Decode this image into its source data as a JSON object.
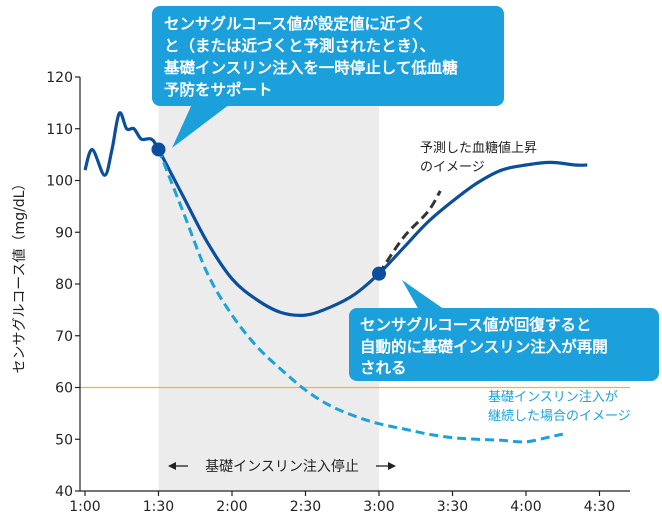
{
  "chart_data": {
    "type": "line",
    "ylabel": "センサグルコース値（mg/dL）",
    "ylim": [
      40,
      120
    ],
    "yticks": [
      40,
      50,
      60,
      70,
      80,
      90,
      100,
      110,
      120
    ],
    "xticks": [
      "1:00",
      "1:30",
      "2:00",
      "2:30",
      "3:00",
      "3:30",
      "4:00",
      "4:30"
    ],
    "grid": false,
    "threshold": {
      "value": 60,
      "color": "#f2b821"
    },
    "suspend_band": {
      "from": "1:30",
      "to": "3:00",
      "label": "基礎インスリン注入停止"
    },
    "series": [
      {
        "name": "",
        "style": "solid",
        "color": "#0b4f9c",
        "points": [
          [
            "1:00",
            102
          ],
          [
            "1:03",
            106
          ],
          [
            "1:08",
            101
          ],
          [
            "1:11",
            106
          ],
          [
            "1:14",
            113
          ],
          [
            "1:17",
            110
          ],
          [
            "1:20",
            110
          ],
          [
            "1:23",
            108
          ],
          [
            "1:27",
            108
          ],
          [
            "1:30",
            106
          ],
          [
            "1:40",
            97
          ],
          [
            "1:50",
            88
          ],
          [
            "2:00",
            81
          ],
          [
            "2:10",
            77
          ],
          [
            "2:20",
            74.5
          ],
          [
            "2:30",
            74
          ],
          [
            "2:40",
            75.5
          ],
          [
            "2:50",
            78
          ],
          [
            "3:00",
            82
          ],
          [
            "3:10",
            87
          ],
          [
            "3:20",
            92
          ],
          [
            "3:30",
            96
          ],
          [
            "3:40",
            99.5
          ],
          [
            "3:50",
            102
          ],
          [
            "4:00",
            103
          ],
          [
            "4:10",
            103.5
          ],
          [
            "4:20",
            103
          ],
          [
            "4:25",
            103
          ]
        ]
      },
      {
        "name": "予測した血糖値上昇のイメージ",
        "style": "dashed",
        "color": "#333333",
        "points": [
          [
            "3:00",
            82
          ],
          [
            "3:10",
            89
          ],
          [
            "3:20",
            94
          ],
          [
            "3:25",
            98
          ]
        ]
      },
      {
        "name": "基礎インスリン注入が継続した場合のイメージ",
        "style": "dashed",
        "color": "#1aa3d9",
        "points": [
          [
            "1:30",
            106
          ],
          [
            "1:40",
            94
          ],
          [
            "1:50",
            82
          ],
          [
            "2:00",
            74
          ],
          [
            "2:10",
            68
          ],
          [
            "2:20",
            63.5
          ],
          [
            "2:30",
            59.5
          ],
          [
            "2:40",
            56.5
          ],
          [
            "2:50",
            54.5
          ],
          [
            "3:00",
            53
          ],
          [
            "3:10",
            52
          ],
          [
            "3:20",
            51
          ],
          [
            "3:30",
            50.3
          ],
          [
            "3:40",
            50
          ],
          [
            "3:50",
            49.8
          ],
          [
            "4:00",
            49.5
          ],
          [
            "4:10",
            50.5
          ],
          [
            "4:15",
            51
          ]
        ]
      }
    ],
    "markers": [
      {
        "x": "1:30",
        "y": 106,
        "color": "#0b4f9c"
      },
      {
        "x": "3:00",
        "y": 82,
        "color": "#0b4f9c"
      }
    ],
    "callouts": [
      {
        "lines": [
          "センサグルコース値が設定値に近づく",
          "と（または近づくと予測されたとき）、",
          "基礎インスリン注入を一時停止して低血糖",
          "予防をサポート"
        ],
        "color": "#1ba0dc"
      },
      {
        "lines": [
          "センサグルコース値が回復すると",
          "自動的に基礎インスリン注入が再開",
          "される"
        ],
        "color": "#1ba0dc"
      }
    ],
    "annotations": [
      {
        "lines": [
          "予測した血糖値上昇",
          "のイメージ"
        ],
        "color": "#222222"
      },
      {
        "lines": [
          "基礎インスリン注入が",
          "継続した場合のイメージ"
        ],
        "color": "#1aa3d9"
      }
    ]
  }
}
